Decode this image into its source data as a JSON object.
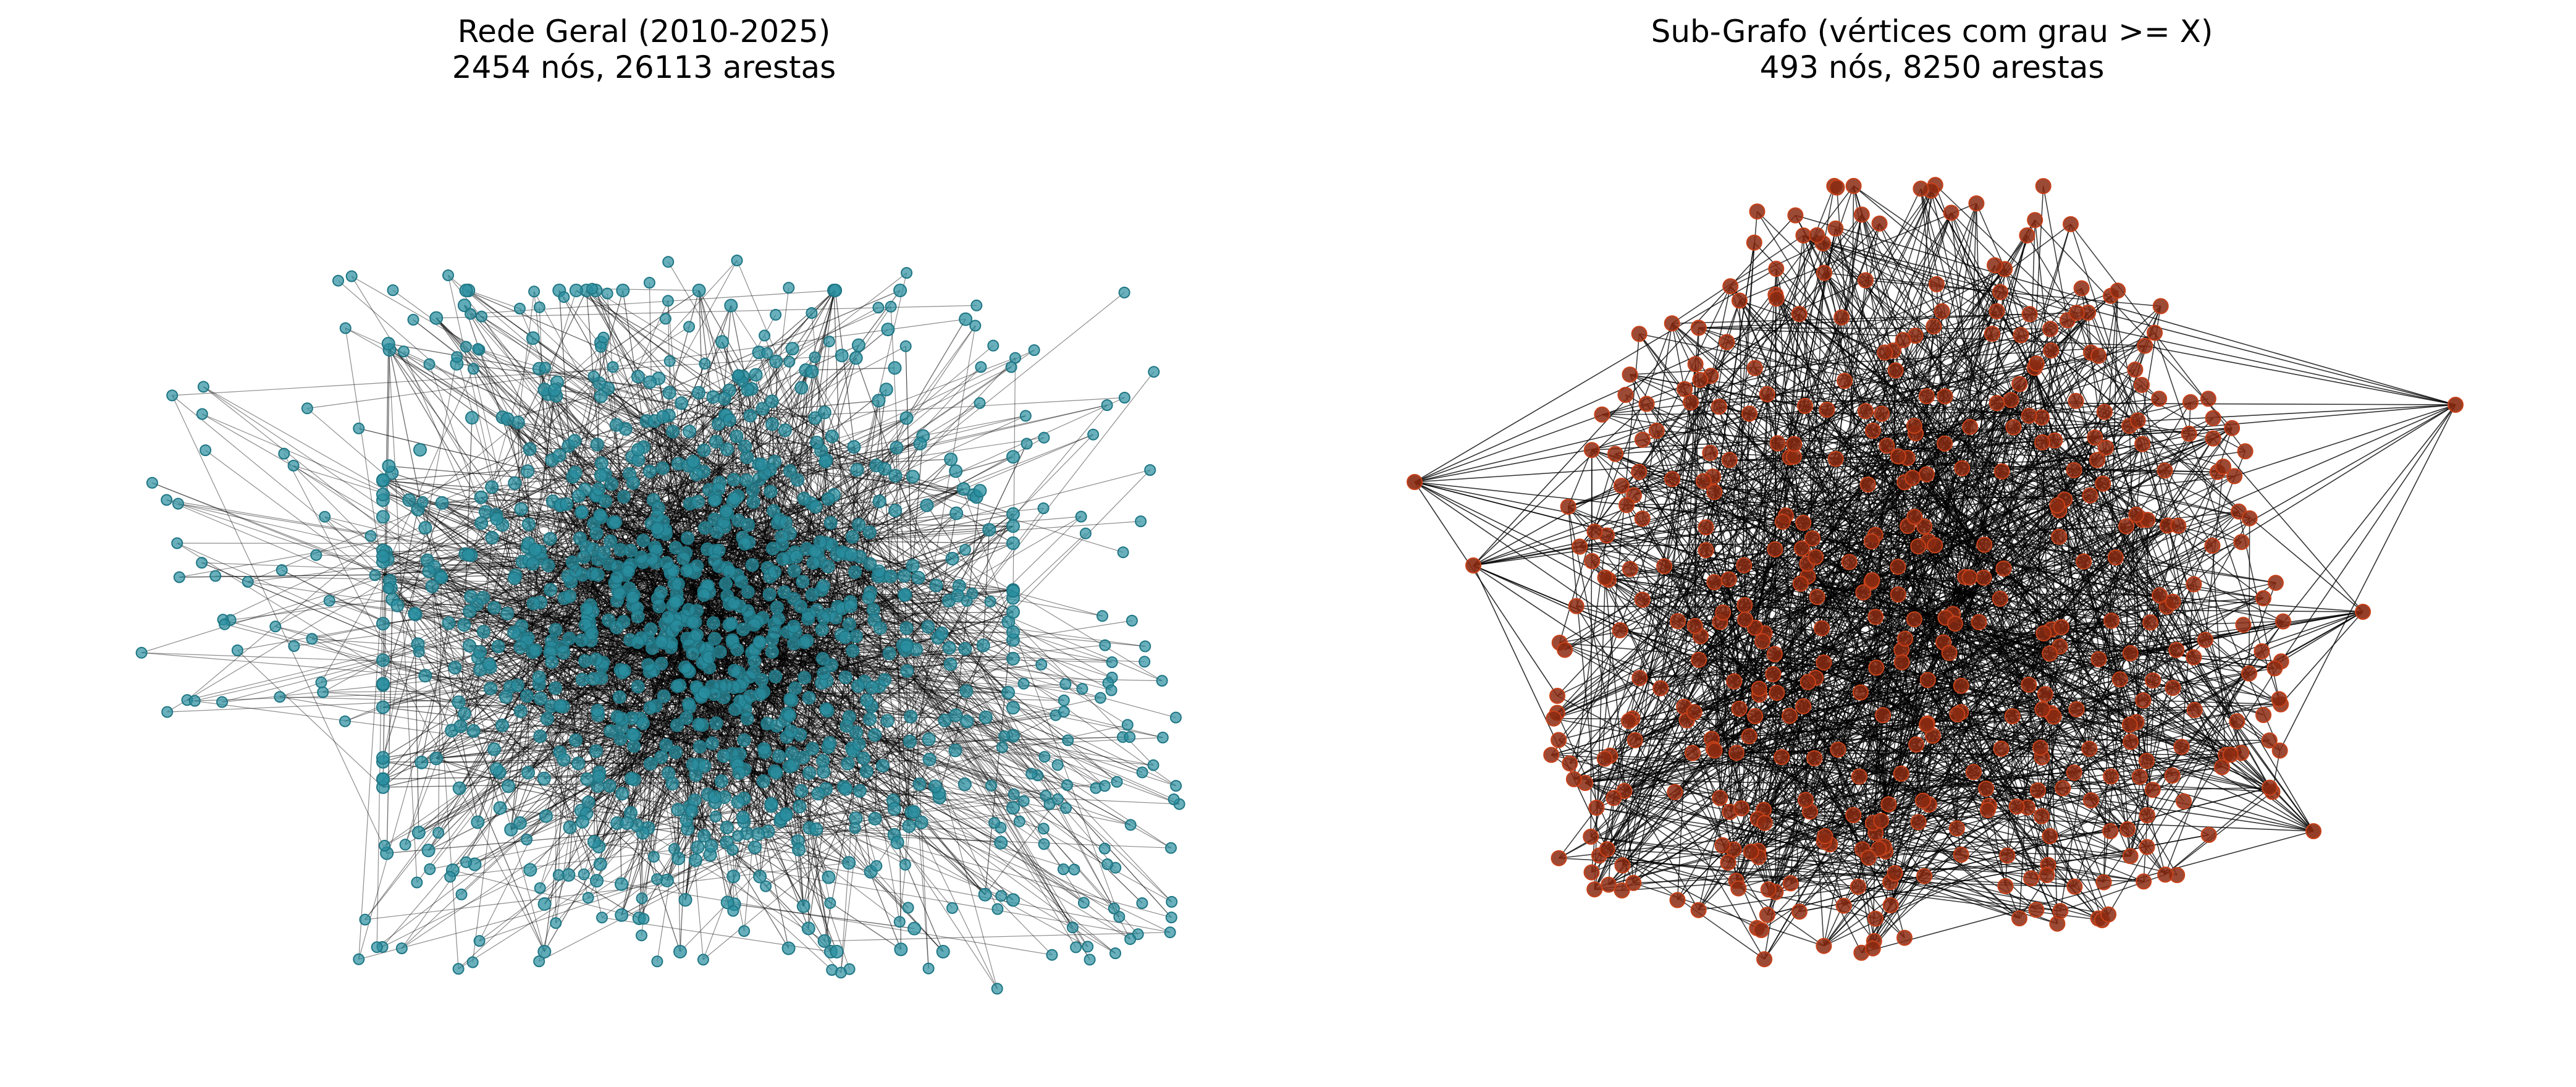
{
  "panels": [
    {
      "title": "Rede Geral (2010-2025)",
      "subtitle": "2454 nós, 26113 arestas",
      "node_color": "#2a8fa0",
      "node_stroke": "#1f7684",
      "edge_color": "#000000",
      "nodes": 2454,
      "edges": 26113
    },
    {
      "title": "Sub-Grafo (vértices com grau >= X)",
      "subtitle": "493 nós, 8250 arestas",
      "node_color": "#8a2a12",
      "node_stroke": "#c8421a",
      "edge_color": "#000000",
      "nodes": 493,
      "edges": 8250
    }
  ]
}
